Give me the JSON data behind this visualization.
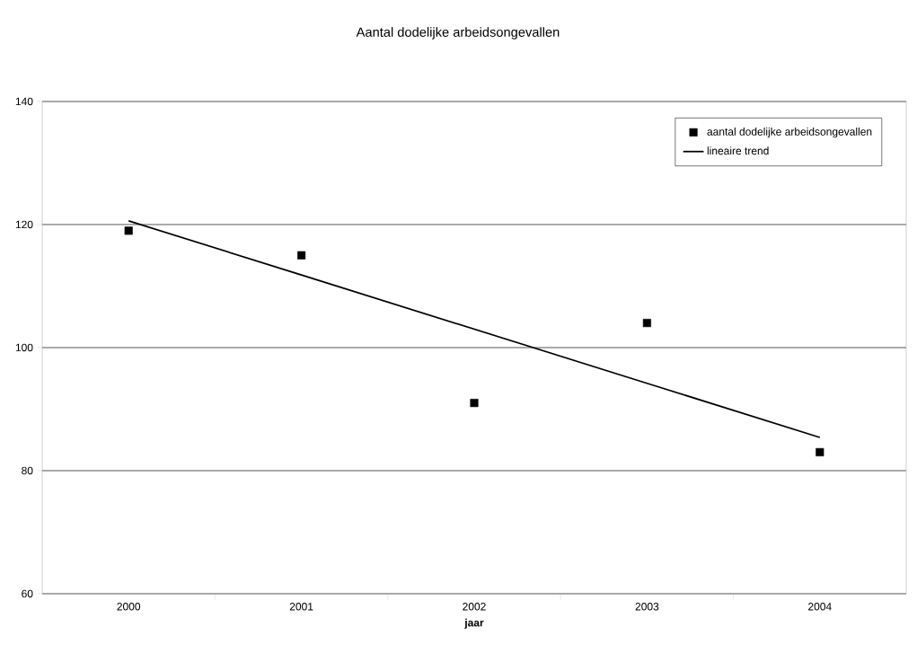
{
  "chart_data": {
    "type": "scatter",
    "title": "Aantal dodelijke arbeidsongevallen",
    "xlabel": "jaar",
    "categories": [
      "2000",
      "2001",
      "2002",
      "2003",
      "2004"
    ],
    "series": [
      {
        "name": "aantal dodelijke arbeidsongevallen",
        "type": "scatter",
        "marker": "square",
        "color": "#000000",
        "values": [
          119,
          115,
          91,
          104,
          83
        ]
      },
      {
        "name": "lineaire trend",
        "type": "line",
        "marker": "none",
        "line_style": "solid",
        "color": "#000000",
        "values": [
          120.6,
          111.8,
          103.0,
          94.2,
          85.4
        ]
      }
    ],
    "ylim": [
      60,
      140
    ],
    "yticks": [
      60,
      80,
      100,
      120,
      140
    ],
    "grid": "y",
    "legend": "top right"
  }
}
